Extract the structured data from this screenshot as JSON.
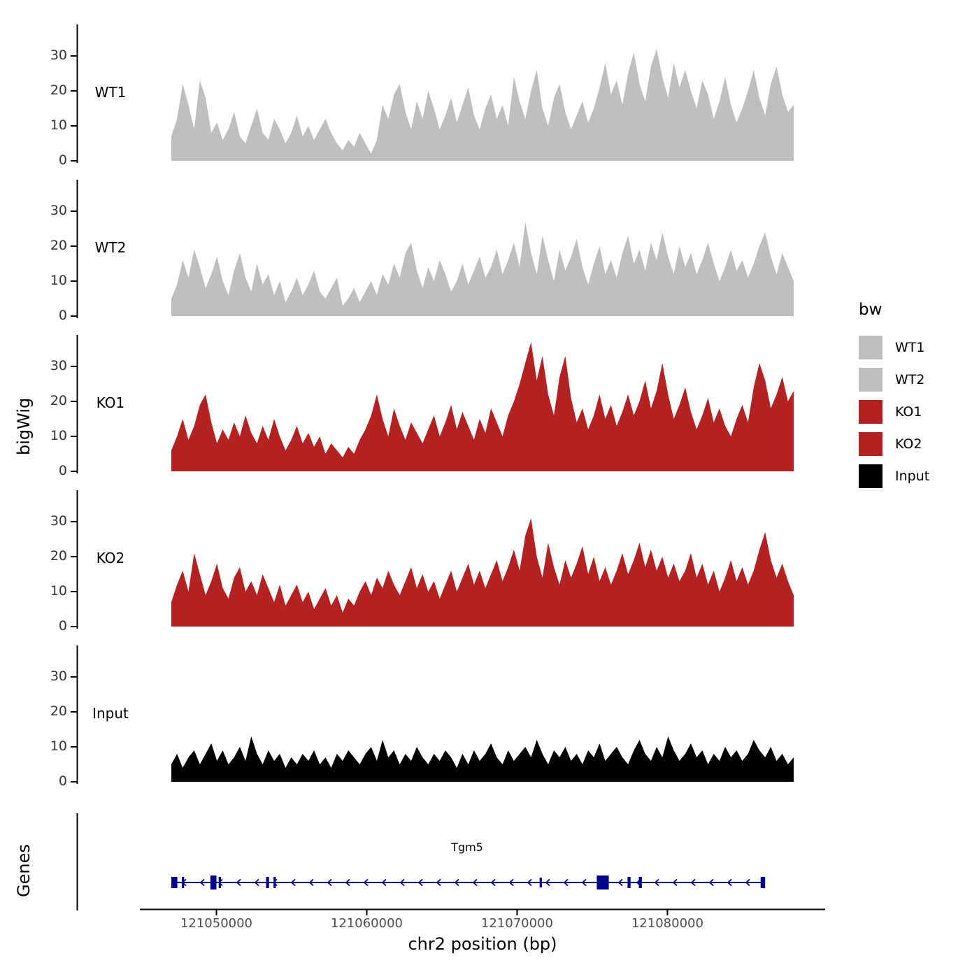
{
  "figure": {
    "ylabel_tracks": "bigWig",
    "ylabel_genes": "Genes"
  },
  "legend": {
    "title": "bw",
    "entries": [
      {
        "label": "WT1",
        "color": "#BEBEBE"
      },
      {
        "label": "WT2",
        "color": "#BEBEBE"
      },
      {
        "label": "KO1",
        "color": "#B22222"
      },
      {
        "label": "KO2",
        "color": "#B22222"
      },
      {
        "label": "Input",
        "color": "#000000"
      }
    ]
  },
  "chart_data": {
    "type": "area",
    "xlabel": "chr2 position (bp)",
    "ylabel": "bigWig",
    "x_range": [
      121047000,
      121088400
    ],
    "x_ticks": [
      121050000,
      121060000,
      121070000,
      121080000
    ],
    "y_ticks": [
      0,
      10,
      20,
      30
    ],
    "ylim": [
      0,
      39
    ],
    "tracks": [
      {
        "name": "WT1",
        "color": "#BEBEBE",
        "values": [
          7,
          12,
          22,
          16,
          9,
          23,
          18,
          8,
          11,
          6,
          9,
          14,
          7,
          5,
          10,
          15,
          8,
          6,
          12,
          9,
          5,
          8,
          13,
          7,
          10,
          6,
          9,
          12,
          8,
          5,
          3,
          6,
          4,
          8,
          5,
          2,
          6,
          16,
          12,
          19,
          22,
          14,
          9,
          17,
          12,
          20,
          15,
          9,
          13,
          18,
          11,
          16,
          21,
          13,
          9,
          15,
          19,
          12,
          16,
          10,
          24,
          17,
          12,
          20,
          26,
          15,
          10,
          18,
          22,
          14,
          9,
          13,
          17,
          11,
          15,
          21,
          28,
          19,
          23,
          16,
          25,
          31,
          22,
          17,
          27,
          32,
          24,
          18,
          28,
          21,
          26,
          20,
          15,
          23,
          19,
          12,
          17,
          24,
          16,
          11,
          15,
          20,
          26,
          18,
          13,
          22,
          27,
          19,
          14,
          16
        ]
      },
      {
        "name": "WT2",
        "color": "#BEBEBE",
        "values": [
          5,
          9,
          16,
          11,
          19,
          14,
          8,
          12,
          17,
          10,
          6,
          13,
          18,
          11,
          7,
          15,
          9,
          12,
          6,
          10,
          4,
          7,
          11,
          6,
          9,
          13,
          7,
          5,
          8,
          11,
          3,
          5,
          8,
          4,
          7,
          10,
          6,
          12,
          9,
          15,
          11,
          18,
          21,
          13,
          8,
          14,
          10,
          16,
          12,
          7,
          10,
          15,
          9,
          13,
          17,
          11,
          14,
          19,
          12,
          16,
          21,
          14,
          27,
          18,
          12,
          23,
          16,
          10,
          19,
          13,
          17,
          22,
          14,
          9,
          15,
          20,
          12,
          16,
          11,
          18,
          23,
          15,
          19,
          13,
          21,
          16,
          24,
          17,
          12,
          20,
          14,
          18,
          12,
          16,
          21,
          15,
          10,
          14,
          19,
          13,
          16,
          11,
          15,
          20,
          24,
          17,
          12,
          18,
          14,
          10
        ]
      },
      {
        "name": "KO1",
        "color": "#B22222",
        "values": [
          6,
          10,
          15,
          9,
          13,
          19,
          22,
          14,
          8,
          12,
          9,
          14,
          10,
          16,
          11,
          8,
          13,
          9,
          15,
          10,
          6,
          9,
          13,
          8,
          11,
          7,
          10,
          5,
          8,
          6,
          4,
          7,
          5,
          9,
          12,
          16,
          22,
          15,
          10,
          18,
          13,
          9,
          14,
          11,
          8,
          12,
          16,
          10,
          14,
          19,
          12,
          17,
          13,
          9,
          15,
          11,
          18,
          14,
          10,
          16,
          20,
          25,
          31,
          37,
          26,
          33,
          22,
          16,
          27,
          33,
          21,
          14,
          18,
          12,
          16,
          22,
          15,
          19,
          13,
          17,
          22,
          16,
          20,
          26,
          18,
          23,
          31,
          22,
          15,
          19,
          24,
          17,
          12,
          16,
          21,
          14,
          18,
          13,
          10,
          15,
          19,
          14,
          24,
          31,
          26,
          18,
          22,
          27,
          20,
          23
        ]
      },
      {
        "name": "KO2",
        "color": "#B22222",
        "values": [
          7,
          12,
          16,
          10,
          21,
          15,
          9,
          13,
          18,
          11,
          8,
          14,
          17,
          10,
          13,
          9,
          15,
          11,
          7,
          12,
          6,
          9,
          12,
          7,
          10,
          5,
          8,
          11,
          6,
          9,
          4,
          8,
          6,
          10,
          13,
          9,
          14,
          11,
          16,
          12,
          9,
          13,
          17,
          11,
          15,
          10,
          13,
          8,
          12,
          16,
          10,
          14,
          18,
          12,
          16,
          11,
          15,
          19,
          13,
          17,
          22,
          16,
          26,
          31,
          20,
          14,
          24,
          17,
          12,
          19,
          14,
          18,
          23,
          15,
          20,
          13,
          17,
          12,
          16,
          21,
          15,
          19,
          24,
          17,
          22,
          16,
          20,
          14,
          18,
          13,
          16,
          21,
          14,
          18,
          12,
          16,
          10,
          14,
          19,
          13,
          17,
          12,
          16,
          22,
          27,
          19,
          14,
          18,
          13,
          9
        ]
      },
      {
        "name": "Input",
        "color": "#000000",
        "values": [
          5,
          8,
          4,
          7,
          9,
          5,
          8,
          11,
          6,
          9,
          5,
          7,
          10,
          6,
          13,
          8,
          5,
          9,
          6,
          8,
          4,
          7,
          5,
          8,
          6,
          9,
          5,
          7,
          4,
          8,
          6,
          9,
          7,
          5,
          8,
          10,
          6,
          12,
          7,
          9,
          5,
          8,
          6,
          10,
          7,
          5,
          8,
          6,
          9,
          7,
          4,
          8,
          5,
          9,
          6,
          8,
          11,
          7,
          5,
          9,
          6,
          8,
          10,
          7,
          12,
          8,
          5,
          9,
          7,
          10,
          6,
          8,
          5,
          9,
          7,
          11,
          6,
          8,
          10,
          7,
          5,
          9,
          12,
          8,
          6,
          10,
          7,
          13,
          9,
          6,
          8,
          11,
          7,
          9,
          5,
          8,
          6,
          10,
          7,
          9,
          6,
          8,
          12,
          9,
          7,
          10,
          6,
          8,
          5,
          7
        ]
      }
    ],
    "gene_track": {
      "label": "Genes",
      "gene_name": "Tgm5",
      "strand": "-",
      "color": "#00008B",
      "start": 121047000,
      "end": 121086500,
      "exons": [
        {
          "start": 121047000,
          "end": 121047400,
          "h": 16
        },
        {
          "start": 121047700,
          "end": 121047850,
          "h": 16
        },
        {
          "start": 121049600,
          "end": 121050000,
          "h": 20
        },
        {
          "start": 121050150,
          "end": 121050300,
          "h": 16
        },
        {
          "start": 121053300,
          "end": 121053500,
          "h": 16
        },
        {
          "start": 121053800,
          "end": 121053950,
          "h": 16
        },
        {
          "start": 121071500,
          "end": 121071650,
          "h": 14
        },
        {
          "start": 121075300,
          "end": 121076100,
          "h": 20
        },
        {
          "start": 121077350,
          "end": 121077550,
          "h": 16
        },
        {
          "start": 121078100,
          "end": 121078300,
          "h": 16
        },
        {
          "start": 121086200,
          "end": 121086500,
          "h": 16
        }
      ]
    }
  }
}
